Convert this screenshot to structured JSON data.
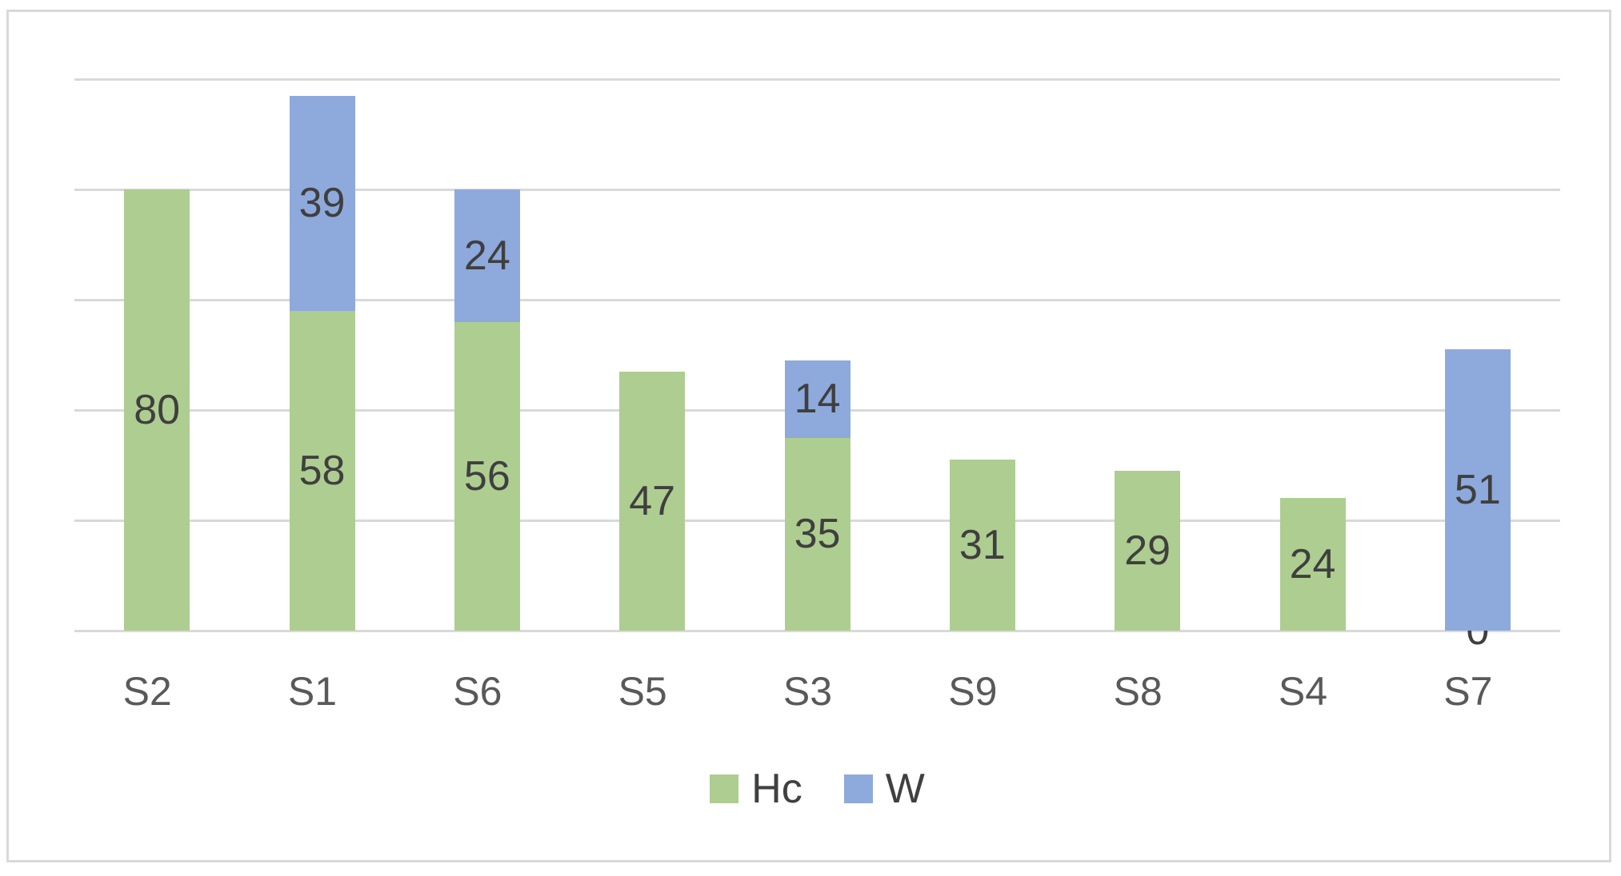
{
  "chart_data": {
    "type": "bar",
    "stacked": true,
    "title": "",
    "xlabel": "",
    "ylabel": "",
    "categories": [
      "S2",
      "S1",
      "S6",
      "S5",
      "S3",
      "S9",
      "S8",
      "S4",
      "S7"
    ],
    "series": [
      {
        "name": "Hc",
        "color": "#AECD90",
        "values": [
          80,
          58,
          56,
          47,
          35,
          31,
          29,
          24,
          0
        ]
      },
      {
        "name": "W",
        "color": "#8EA9DB",
        "values": [
          null,
          39,
          24,
          null,
          14,
          null,
          null,
          null,
          51
        ]
      }
    ],
    "totals": [
      80,
      97,
      80,
      47,
      49,
      31,
      29,
      24,
      51
    ],
    "ylim": [
      0,
      100
    ],
    "grid_step": 20,
    "grid": "on",
    "y_axis_labels": "none",
    "data_labels": "center",
    "legend_position": "bottom"
  },
  "colors": {
    "grid": "#D9D9D9",
    "frame_border": "#D9D9D9",
    "background": "#FFFFFF",
    "data_label": "#3F3F3F",
    "category_label": "#595959",
    "legend_label": "#404040"
  }
}
